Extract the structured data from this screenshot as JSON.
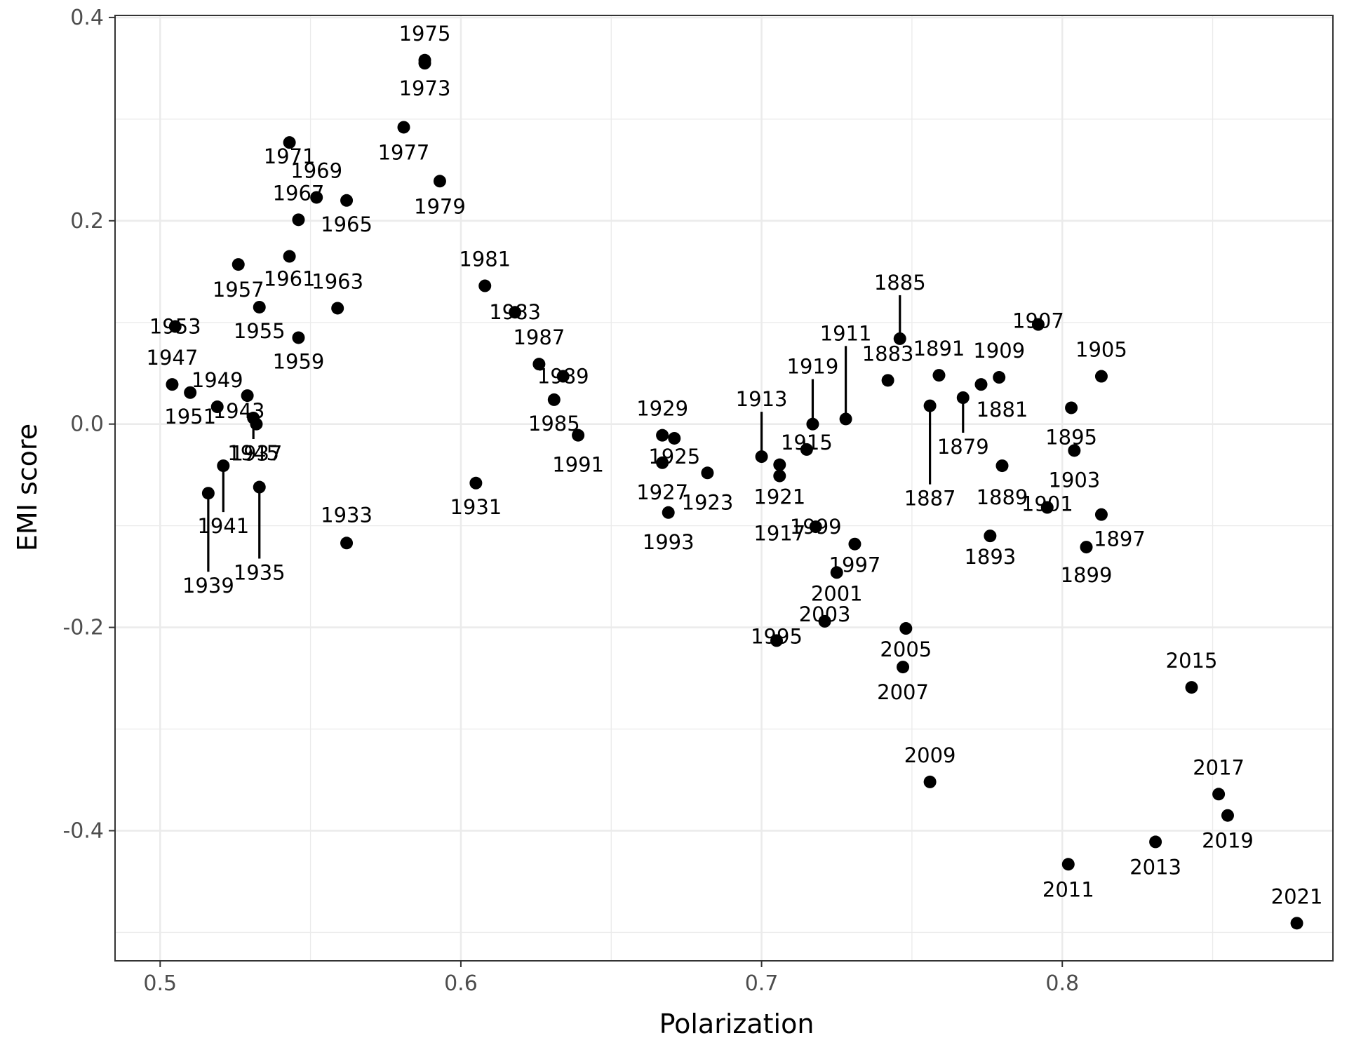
{
  "chart_data": {
    "type": "scatter",
    "title": "",
    "xlabel": "Polarization",
    "ylabel": "EMI score",
    "xlim": [
      0.485,
      0.89
    ],
    "ylim": [
      -0.528,
      0.402
    ],
    "x_ticks": [
      0.5,
      0.6,
      0.7,
      0.8
    ],
    "x_tick_labels": [
      "0.5",
      "0.6",
      "0.7",
      "0.8"
    ],
    "y_ticks": [
      0.4,
      0.2,
      0.0,
      -0.2,
      -0.4
    ],
    "y_tick_labels": [
      "0.4",
      "0.2",
      "0.0",
      "-0.2",
      "-0.4"
    ],
    "grid": true,
    "legend": "none",
    "point_color": "#000000",
    "points": [
      {
        "label": "1879",
        "x": 0.767,
        "y": 0.026
      },
      {
        "label": "1881",
        "x": 0.773,
        "y": 0.039
      },
      {
        "label": "1883",
        "x": 0.742,
        "y": 0.043
      },
      {
        "label": "1885",
        "x": 0.746,
        "y": 0.084
      },
      {
        "label": "1887",
        "x": 0.756,
        "y": 0.018
      },
      {
        "label": "1889",
        "x": 0.78,
        "y": -0.041
      },
      {
        "label": "1891",
        "x": 0.759,
        "y": 0.048
      },
      {
        "label": "1893",
        "x": 0.776,
        "y": -0.11
      },
      {
        "label": "1895",
        "x": 0.803,
        "y": 0.016
      },
      {
        "label": "1897",
        "x": 0.813,
        "y": -0.089
      },
      {
        "label": "1899",
        "x": 0.808,
        "y": -0.121
      },
      {
        "label": "1901",
        "x": 0.795,
        "y": -0.082
      },
      {
        "label": "1903",
        "x": 0.804,
        "y": -0.026
      },
      {
        "label": "1905",
        "x": 0.813,
        "y": 0.047
      },
      {
        "label": "1907",
        "x": 0.792,
        "y": 0.098
      },
      {
        "label": "1909",
        "x": 0.779,
        "y": 0.046
      },
      {
        "label": "1911",
        "x": 0.728,
        "y": 0.005
      },
      {
        "label": "1913",
        "x": 0.7,
        "y": -0.032
      },
      {
        "label": "1915",
        "x": 0.715,
        "y": -0.025
      },
      {
        "label": "1917",
        "x": 0.706,
        "y": -0.051
      },
      {
        "label": "1919",
        "x": 0.717,
        "y": 0.0
      },
      {
        "label": "1921",
        "x": 0.706,
        "y": -0.04
      },
      {
        "label": "1923",
        "x": 0.682,
        "y": -0.048
      },
      {
        "label": "1925",
        "x": 0.671,
        "y": -0.014
      },
      {
        "label": "1927",
        "x": 0.667,
        "y": -0.038
      },
      {
        "label": "1929",
        "x": 0.667,
        "y": -0.011
      },
      {
        "label": "1931",
        "x": 0.605,
        "y": -0.058
      },
      {
        "label": "1933",
        "x": 0.562,
        "y": -0.117
      },
      {
        "label": "1935",
        "x": 0.533,
        "y": -0.062
      },
      {
        "label": "1937",
        "x": 0.532,
        "y": 0.0
      },
      {
        "label": "1939",
        "x": 0.516,
        "y": -0.068
      },
      {
        "label": "1941",
        "x": 0.521,
        "y": -0.041
      },
      {
        "label": "1943",
        "x": 0.529,
        "y": 0.028
      },
      {
        "label": "1945",
        "x": 0.531,
        "y": 0.006
      },
      {
        "label": "1947",
        "x": 0.504,
        "y": 0.039
      },
      {
        "label": "1949",
        "x": 0.519,
        "y": 0.017
      },
      {
        "label": "1951",
        "x": 0.51,
        "y": 0.031
      },
      {
        "label": "1953",
        "x": 0.505,
        "y": 0.096
      },
      {
        "label": "1955",
        "x": 0.533,
        "y": 0.115
      },
      {
        "label": "1957",
        "x": 0.526,
        "y": 0.157
      },
      {
        "label": "1959",
        "x": 0.546,
        "y": 0.085
      },
      {
        "label": "1961",
        "x": 0.543,
        "y": 0.165
      },
      {
        "label": "1963",
        "x": 0.559,
        "y": 0.114
      },
      {
        "label": "1965",
        "x": 0.562,
        "y": 0.22
      },
      {
        "label": "1967",
        "x": 0.546,
        "y": 0.201
      },
      {
        "label": "1969",
        "x": 0.552,
        "y": 0.223
      },
      {
        "label": "1971",
        "x": 0.543,
        "y": 0.277
      },
      {
        "label": "1973",
        "x": 0.588,
        "y": 0.355
      },
      {
        "label": "1975",
        "x": 0.588,
        "y": 0.358
      },
      {
        "label": "1977",
        "x": 0.581,
        "y": 0.292
      },
      {
        "label": "1979",
        "x": 0.593,
        "y": 0.239
      },
      {
        "label": "1981",
        "x": 0.608,
        "y": 0.136
      },
      {
        "label": "1983",
        "x": 0.618,
        "y": 0.11
      },
      {
        "label": "1985",
        "x": 0.631,
        "y": 0.024
      },
      {
        "label": "1987",
        "x": 0.626,
        "y": 0.059
      },
      {
        "label": "1989",
        "x": 0.634,
        "y": 0.047
      },
      {
        "label": "1991",
        "x": 0.639,
        "y": -0.011
      },
      {
        "label": "1993",
        "x": 0.669,
        "y": -0.087
      },
      {
        "label": "1995",
        "x": 0.705,
        "y": -0.213
      },
      {
        "label": "1997",
        "x": 0.731,
        "y": -0.118
      },
      {
        "label": "1999",
        "x": 0.718,
        "y": -0.101
      },
      {
        "label": "2001",
        "x": 0.725,
        "y": -0.146
      },
      {
        "label": "2003",
        "x": 0.721,
        "y": -0.194
      },
      {
        "label": "2005",
        "x": 0.748,
        "y": -0.201
      },
      {
        "label": "2007",
        "x": 0.747,
        "y": -0.239
      },
      {
        "label": "2009",
        "x": 0.756,
        "y": -0.352
      },
      {
        "label": "2011",
        "x": 0.802,
        "y": -0.433
      },
      {
        "label": "2013",
        "x": 0.831,
        "y": -0.411
      },
      {
        "label": "2015",
        "x": 0.843,
        "y": -0.259
      },
      {
        "label": "2017",
        "x": 0.852,
        "y": -0.364
      },
      {
        "label": "2019",
        "x": 0.855,
        "y": -0.385
      },
      {
        "label": "2021",
        "x": 0.878,
        "y": -0.491
      }
    ]
  }
}
